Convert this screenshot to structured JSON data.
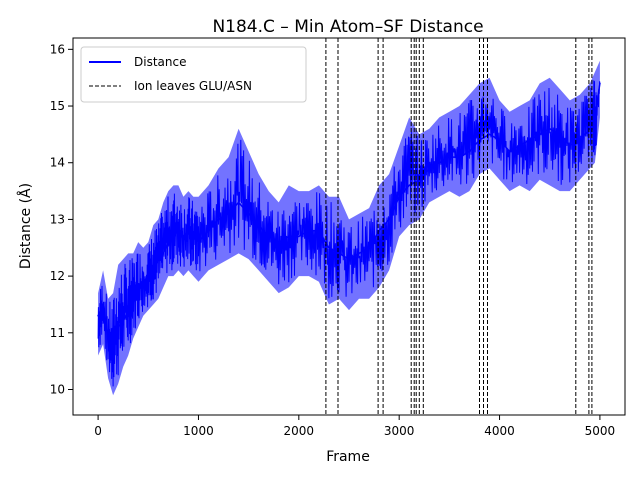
{
  "chart_data": {
    "type": "line",
    "title": "N184.C – Min Atom–SF Distance",
    "xlabel": "Frame",
    "ylabel": "Distance (Å)",
    "xlim": [
      -250,
      5250
    ],
    "ylim": [
      9.55,
      16.2
    ],
    "xticks": [
      0,
      1000,
      2000,
      3000,
      4000,
      5000
    ],
    "yticks": [
      10,
      11,
      12,
      13,
      14,
      15,
      16
    ],
    "grid": false,
    "legend_position": "top-left",
    "series": [
      {
        "name": "Distance",
        "color": "#0000ff",
        "style": "solid",
        "x": [
          0,
          50,
          100,
          150,
          200,
          250,
          300,
          350,
          400,
          450,
          500,
          550,
          600,
          650,
          700,
          750,
          800,
          850,
          900,
          950,
          1000,
          1100,
          1200,
          1300,
          1400,
          1500,
          1600,
          1700,
          1800,
          1900,
          2000,
          2100,
          2200,
          2300,
          2400,
          2500,
          2600,
          2700,
          2800,
          2900,
          3000,
          3100,
          3200,
          3300,
          3400,
          3500,
          3600,
          3700,
          3800,
          3900,
          4000,
          4100,
          4200,
          4300,
          4400,
          4500,
          4600,
          4700,
          4800,
          4900,
          4950,
          5000
        ],
        "values": [
          11.3,
          11.5,
          10.9,
          11.0,
          11.1,
          11.2,
          11.4,
          11.5,
          11.8,
          11.9,
          12.0,
          12.2,
          12.3,
          12.4,
          12.6,
          12.7,
          12.8,
          12.7,
          12.8,
          12.7,
          12.6,
          12.8,
          13.0,
          13.1,
          13.3,
          13.1,
          12.9,
          12.7,
          12.6,
          12.7,
          12.7,
          12.8,
          12.8,
          12.5,
          12.4,
          12.3,
          12.4,
          12.5,
          12.8,
          13.0,
          13.4,
          13.6,
          13.7,
          13.9,
          14.0,
          14.1,
          14.1,
          14.2,
          14.4,
          14.5,
          14.4,
          14.2,
          14.3,
          14.4,
          14.5,
          14.6,
          14.5,
          14.3,
          14.4,
          14.6,
          14.8,
          15.4
        ],
        "min": [
          10.6,
          10.8,
          10.2,
          9.9,
          10.1,
          10.4,
          10.6,
          10.9,
          11.1,
          11.3,
          11.4,
          11.5,
          11.6,
          11.8,
          12.0,
          12.0,
          12.1,
          12.0,
          12.1,
          12.0,
          11.9,
          12.1,
          12.2,
          12.3,
          12.4,
          12.3,
          12.1,
          11.9,
          11.7,
          11.8,
          12.0,
          12.0,
          11.9,
          11.5,
          11.6,
          11.4,
          11.6,
          11.6,
          11.8,
          12.1,
          12.7,
          12.9,
          13.0,
          13.3,
          13.4,
          13.5,
          13.4,
          13.5,
          13.8,
          13.9,
          13.7,
          13.5,
          13.6,
          13.5,
          13.7,
          13.6,
          13.5,
          13.5,
          13.7,
          13.9,
          14.0,
          14.8
        ],
        "max": [
          11.7,
          12.1,
          11.6,
          11.7,
          12.2,
          12.3,
          12.4,
          12.4,
          12.6,
          12.5,
          12.6,
          12.9,
          13.0,
          13.3,
          13.5,
          13.6,
          13.6,
          13.4,
          13.5,
          13.4,
          13.4,
          13.6,
          13.9,
          14.1,
          14.6,
          14.2,
          13.8,
          13.5,
          13.3,
          13.6,
          13.5,
          13.5,
          13.6,
          13.4,
          13.4,
          13.0,
          13.1,
          13.2,
          13.6,
          13.8,
          14.3,
          14.8,
          14.5,
          14.6,
          14.8,
          14.9,
          15.0,
          15.2,
          15.4,
          15.5,
          15.1,
          14.9,
          15.0,
          15.1,
          15.4,
          15.5,
          15.3,
          15.1,
          15.2,
          15.4,
          15.6,
          15.8
        ]
      },
      {
        "name": "Ion leaves GLU/ASN",
        "color": "#000000",
        "style": "dashed",
        "vlines": [
          2270,
          2390,
          2790,
          2840,
          3120,
          3150,
          3170,
          3200,
          3240,
          3800,
          3840,
          3880,
          4760,
          4890,
          4920
        ]
      }
    ]
  }
}
